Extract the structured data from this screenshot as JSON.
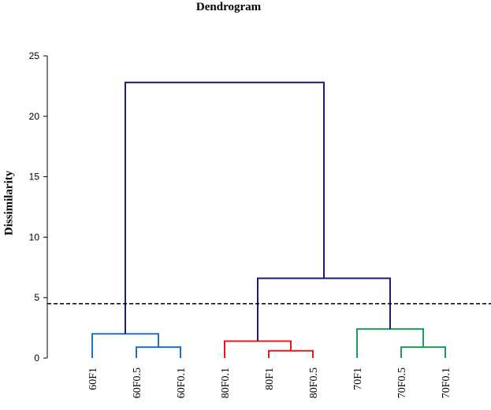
{
  "chart_data": {
    "type": "dendrogram",
    "title": "Dendrogram",
    "ylabel": "Dissimilarity",
    "xlabel": "",
    "ylim": [
      0,
      25
    ],
    "yticks": [
      0,
      5,
      10,
      15,
      20,
      25
    ],
    "cut_line": {
      "value": 4.5,
      "style": "dashed",
      "color": "#000000"
    },
    "leaves": [
      "60F1",
      "60F0.5",
      "60F0.1",
      "80F0.1",
      "80F1",
      "80F0.5",
      "70F1",
      "70F0.5",
      "70F0.1"
    ],
    "clusters": [
      {
        "color": "#1f6fc5",
        "leaves": [
          "60F1",
          "60F0.5",
          "60F0.1"
        ]
      },
      {
        "color": "#e01b1b",
        "leaves": [
          "80F0.1",
          "80F1",
          "80F0.5"
        ]
      },
      {
        "color": "#1e9a5a",
        "leaves": [
          "70F1",
          "70F0.5",
          "70F0.1"
        ]
      }
    ],
    "merges": [
      {
        "left": "60F0.5",
        "right": "60F0.1",
        "height": 0.9,
        "color": "#1f6fc5"
      },
      {
        "left": "60F1",
        "right": "[60F0.5,60F0.1]",
        "height": 2.0,
        "color": "#1f6fc5"
      },
      {
        "left": "80F1",
        "right": "80F0.5",
        "height": 0.6,
        "color": "#e01b1b"
      },
      {
        "left": "80F0.1",
        "right": "[80F1,80F0.5]",
        "height": 1.4,
        "color": "#e01b1b"
      },
      {
        "left": "70F0.5",
        "right": "70F0.1",
        "height": 0.9,
        "color": "#1e9a5a"
      },
      {
        "left": "70F1",
        "right": "[70F0.5,70F0.1]",
        "height": 2.4,
        "color": "#1e9a5a"
      },
      {
        "left": "80 cluster",
        "right": "70 cluster",
        "height": 6.6,
        "color": "#1b1b7a"
      },
      {
        "left": "60 cluster",
        "right": "[80 cluster,70 cluster]",
        "height": 22.8,
        "color": "#1b1b7a"
      }
    ],
    "grid": false,
    "legend": "none"
  }
}
